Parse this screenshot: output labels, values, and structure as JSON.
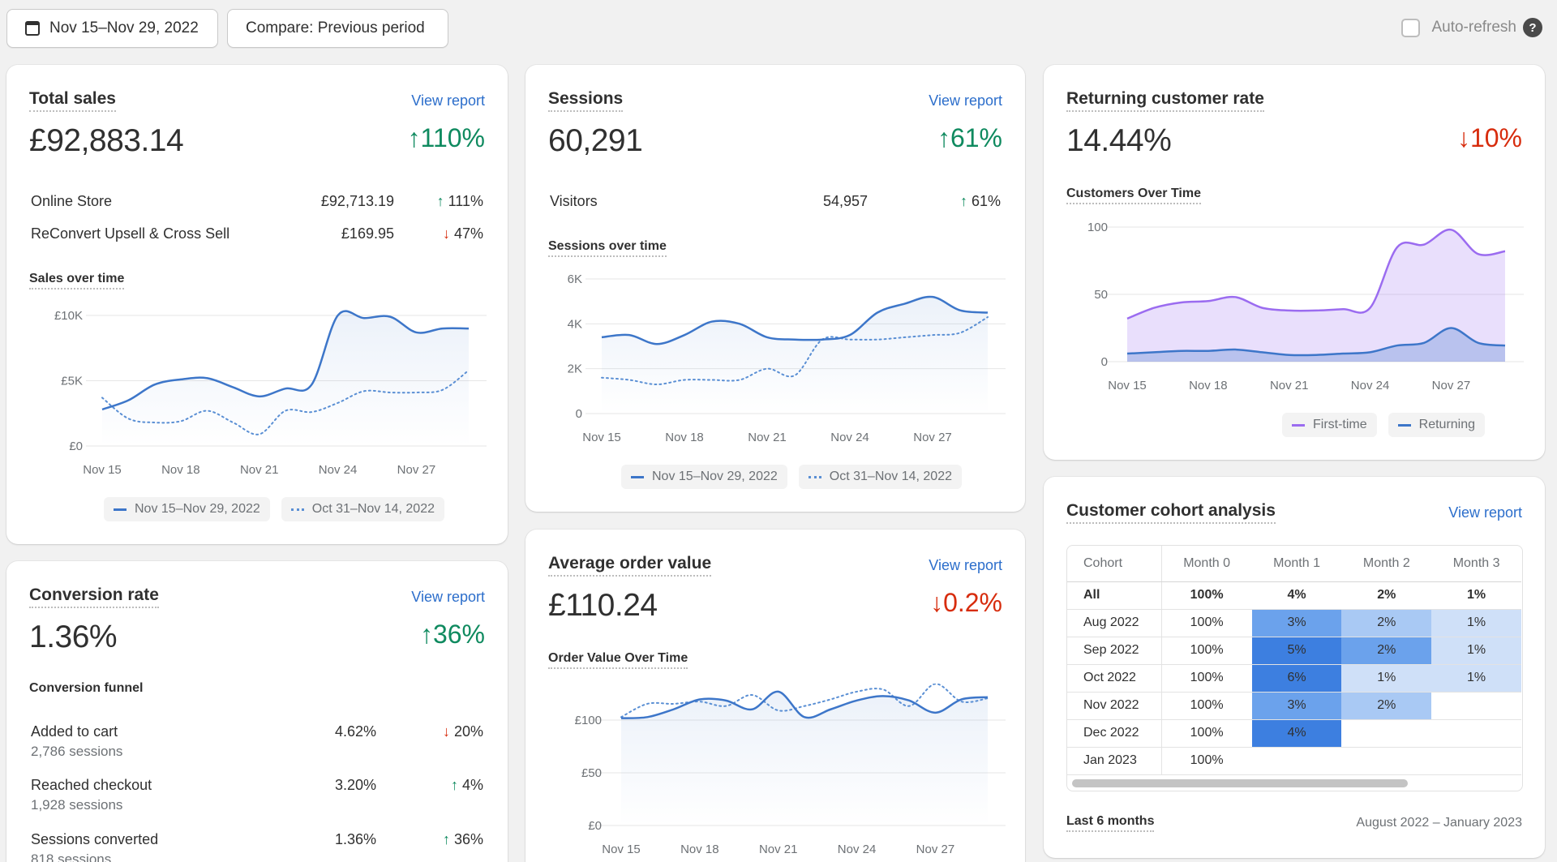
{
  "toolbar": {
    "date_range": "Nov 15–Nov 29, 2022",
    "compare": "Compare: Previous period",
    "auto_refresh": "Auto-refresh",
    "help": "?"
  },
  "total_sales": {
    "title": "Total sales",
    "view_report": "View report",
    "value": "£92,883.14",
    "change": "110%",
    "rows": [
      {
        "label": "Online Store",
        "value": "£92,713.19",
        "change": "111%"
      },
      {
        "label": "ReConvert Upsell & Cross Sell",
        "value": "£169.95",
        "change": "47%"
      }
    ],
    "chart_title": "Sales over time",
    "legend_current": "Nov 15–Nov 29, 2022",
    "legend_previous": "Oct 31–Nov 14, 2022"
  },
  "sessions": {
    "title": "Sessions",
    "view_report": "View report",
    "value": "60,291",
    "change": "61%",
    "rows": [
      {
        "label": "Visitors",
        "value": "54,957",
        "change": "61%"
      }
    ],
    "chart_title": "Sessions over time",
    "legend_current": "Nov 15–Nov 29, 2022",
    "legend_previous": "Oct 31–Nov 14, 2022"
  },
  "returning": {
    "title": "Returning customer rate",
    "value": "14.44%",
    "change": "10%",
    "chart_title": "Customers Over Time",
    "legend_first": "First-time",
    "legend_returning": "Returning"
  },
  "conversion": {
    "title": "Conversion rate",
    "view_report": "View report",
    "value": "1.36%",
    "change": "36%",
    "funnel_title": "Conversion funnel",
    "rows": [
      {
        "label": "Added to cart",
        "sub": "2,786 sessions",
        "value": "4.62%",
        "change": "20%",
        "dir": "down"
      },
      {
        "label": "Reached checkout",
        "sub": "1,928 sessions",
        "value": "3.20%",
        "change": "4%",
        "dir": "up"
      },
      {
        "label": "Sessions converted",
        "sub": "818 sessions",
        "value": "1.36%",
        "change": "36%",
        "dir": "up"
      }
    ]
  },
  "aov": {
    "title": "Average order value",
    "view_report": "View report",
    "value": "£110.24",
    "change": "0.2%",
    "chart_title": "Order Value Over Time"
  },
  "cohort": {
    "title": "Customer cohort analysis",
    "view_report": "View report",
    "headers": [
      "Cohort",
      "Month 0",
      "Month 1",
      "Month 2",
      "Month 3"
    ],
    "rows": [
      {
        "cohort": "All",
        "cells": [
          "100%",
          "4%",
          "2%",
          "1%"
        ]
      },
      {
        "cohort": "Aug 2022",
        "cells": [
          "100%",
          "3%",
          "2%",
          "1%"
        ]
      },
      {
        "cohort": "Sep 2022",
        "cells": [
          "100%",
          "5%",
          "2%",
          "1%"
        ]
      },
      {
        "cohort": "Oct 2022",
        "cells": [
          "100%",
          "6%",
          "1%",
          "1%"
        ]
      },
      {
        "cohort": "Nov 2022",
        "cells": [
          "100%",
          "3%",
          "2%",
          ""
        ]
      },
      {
        "cohort": "Dec 2022",
        "cells": [
          "100%",
          "4%",
          "",
          ""
        ]
      },
      {
        "cohort": "Jan 2023",
        "cells": [
          "100%",
          "",
          "",
          ""
        ]
      }
    ],
    "period_label": "Last 6 months",
    "period_range": "August 2022 – January 2023",
    "colors": {
      "dark": "#3d7fe0",
      "mid": "#6ba2ec",
      "light": "#a9c9f4",
      "pale": "#cfe0f8"
    }
  },
  "chart_data": [
    {
      "type": "line",
      "title": "Sales over time",
      "x": [
        "Nov 15",
        "Nov 16",
        "Nov 17",
        "Nov 18",
        "Nov 19",
        "Nov 20",
        "Nov 21",
        "Nov 22",
        "Nov 23",
        "Nov 24",
        "Nov 25",
        "Nov 26",
        "Nov 27",
        "Nov 28",
        "Nov 29"
      ],
      "x_ticks": [
        "Nov 15",
        "Nov 18",
        "Nov 21",
        "Nov 24",
        "Nov 27"
      ],
      "y_ticks": [
        "£0",
        "£5K",
        "£10K"
      ],
      "ylim": [
        0,
        10000
      ],
      "series": [
        {
          "name": "Nov 15–Nov 29, 2022",
          "style": "solid",
          "values": [
            2800,
            3500,
            4700,
            5100,
            5200,
            4500,
            3800,
            4400,
            4700,
            10000,
            9800,
            9900,
            8700,
            9000,
            9000
          ]
        },
        {
          "name": "Oct 31–Nov 14, 2022",
          "style": "dotted",
          "values": [
            3700,
            2100,
            1800,
            1900,
            2700,
            1800,
            900,
            2700,
            2600,
            3300,
            4200,
            4100,
            4100,
            4300,
            5800
          ]
        }
      ]
    },
    {
      "type": "line",
      "title": "Sessions over time",
      "x": [
        "Nov 15",
        "Nov 16",
        "Nov 17",
        "Nov 18",
        "Nov 19",
        "Nov 20",
        "Nov 21",
        "Nov 22",
        "Nov 23",
        "Nov 24",
        "Nov 25",
        "Nov 26",
        "Nov 27",
        "Nov 28",
        "Nov 29"
      ],
      "x_ticks": [
        "Nov 15",
        "Nov 18",
        "Nov 21",
        "Nov 24",
        "Nov 27"
      ],
      "y_ticks": [
        "0",
        "2K",
        "4K",
        "6K"
      ],
      "ylim": [
        0,
        6000
      ],
      "series": [
        {
          "name": "Nov 15–Nov 29, 2022",
          "style": "solid",
          "values": [
            3400,
            3500,
            3100,
            3500,
            4100,
            4000,
            3400,
            3300,
            3300,
            3500,
            4500,
            4900,
            5200,
            4600,
            4500
          ]
        },
        {
          "name": "Oct 31–Nov 14, 2022",
          "style": "dotted",
          "values": [
            1600,
            1500,
            1300,
            1500,
            1500,
            1500,
            2000,
            1700,
            3300,
            3300,
            3300,
            3400,
            3500,
            3600,
            4300
          ]
        }
      ]
    },
    {
      "type": "area",
      "title": "Customers Over Time",
      "x": [
        "Nov 15",
        "Nov 16",
        "Nov 17",
        "Nov 18",
        "Nov 19",
        "Nov 20",
        "Nov 21",
        "Nov 22",
        "Nov 23",
        "Nov 24",
        "Nov 25",
        "Nov 26",
        "Nov 27",
        "Nov 28",
        "Nov 29"
      ],
      "x_ticks": [
        "Nov 15",
        "Nov 18",
        "Nov 21",
        "Nov 24",
        "Nov 27"
      ],
      "y_ticks": [
        "0",
        "50",
        "100"
      ],
      "ylim": [
        0,
        100
      ],
      "series": [
        {
          "name": "First-time",
          "color": "#9b6cf0",
          "values": [
            32,
            40,
            44,
            45,
            48,
            40,
            38,
            38,
            39,
            40,
            85,
            87,
            98,
            80,
            82
          ]
        },
        {
          "name": "Returning",
          "color": "#3d76c9",
          "values": [
            6,
            7,
            8,
            8,
            9,
            7,
            5,
            5,
            6,
            7,
            12,
            14,
            25,
            14,
            12
          ]
        }
      ]
    },
    {
      "type": "line",
      "title": "Order Value Over Time",
      "x": [
        "Nov 15",
        "Nov 16",
        "Nov 17",
        "Nov 18",
        "Nov 19",
        "Nov 20",
        "Nov 21",
        "Nov 22",
        "Nov 23",
        "Nov 24",
        "Nov 25",
        "Nov 26",
        "Nov 27",
        "Nov 28",
        "Nov 29"
      ],
      "x_ticks": [
        "Nov 15",
        "Nov 18",
        "Nov 21",
        "Nov 24",
        "Nov 27"
      ],
      "y_ticks": [
        "£0",
        "£50",
        "£100"
      ],
      "ylim": [
        0,
        140
      ],
      "series": [
        {
          "name": "Nov 15–Nov 29, 2022",
          "style": "solid",
          "values": [
            97,
            98,
            105,
            114,
            113,
            105,
            121,
            98,
            105,
            113,
            117,
            113,
            102,
            114,
            116
          ]
        },
        {
          "name": "Oct 31–Nov 14, 2022",
          "style": "dotted",
          "values": [
            98,
            110,
            110,
            112,
            108,
            118,
            104,
            108,
            114,
            121,
            123,
            108,
            128,
            112,
            115
          ]
        }
      ]
    }
  ]
}
